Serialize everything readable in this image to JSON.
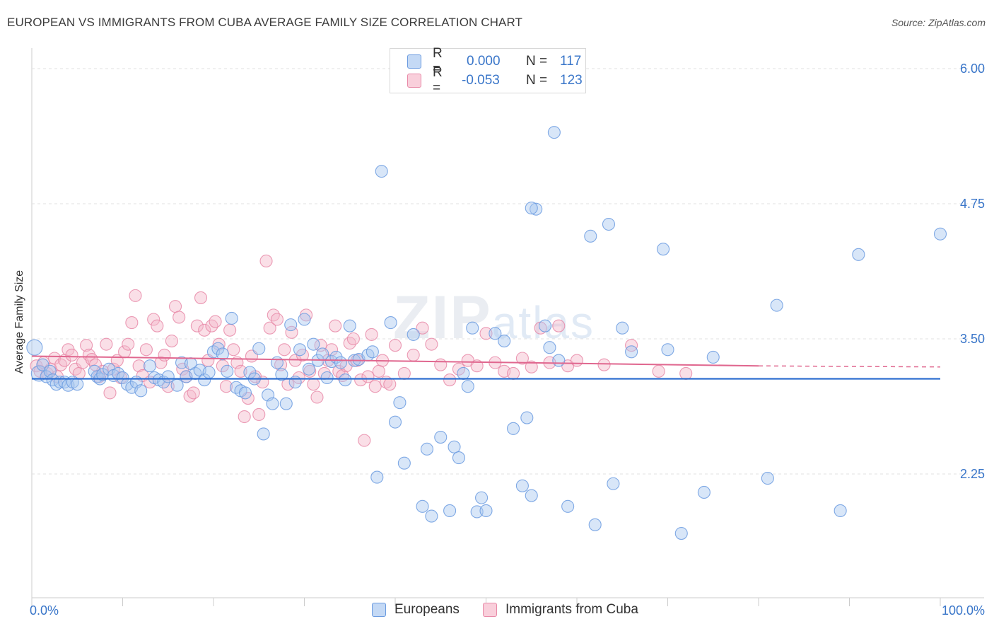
{
  "title": "EUROPEAN VS IMMIGRANTS FROM CUBA AVERAGE FAMILY SIZE CORRELATION CHART",
  "source": "Source: ZipAtlas.com",
  "watermark": {
    "zip": "ZIP",
    "atlas": "atlas"
  },
  "legend": [
    {
      "r_label": "R =",
      "r_value": "0.000",
      "n_label": "N =",
      "n_value": "117",
      "color": "#a9c8f0"
    },
    {
      "r_label": "R =",
      "r_value": "-0.053",
      "n_label": "N =",
      "n_value": "123",
      "color": "#f5b8ca"
    }
  ],
  "chart_data": {
    "type": "scatter",
    "title": "EUROPEAN VS IMMIGRANTS FROM CUBA AVERAGE FAMILY SIZE CORRELATION CHART",
    "ylabel": "Average Family Size",
    "xlabel": "",
    "x_tick_labels": [
      "0.0%",
      "100.0%"
    ],
    "y_ticks": [
      2.25,
      3.5,
      4.75,
      6.0
    ],
    "y_tick_labels": [
      "2.25",
      "3.50",
      "4.75",
      "6.00"
    ],
    "xlim": [
      0,
      100
    ],
    "ylim": [
      1.0,
      6.1
    ],
    "grid": "horizontal dashed",
    "legend_position": "top-center",
    "series": [
      {
        "name": "Europeans",
        "color": "#6b9be0",
        "fill": "#a9c8f0",
        "trend": {
          "x0": 0,
          "y0": 3.13,
          "x1": 100,
          "y1": 3.13
        },
        "points": [
          [
            0.3,
            3.42
          ],
          [
            0.8,
            3.18
          ],
          [
            1.2,
            3.26
          ],
          [
            1.6,
            3.15
          ],
          [
            2.0,
            3.2
          ],
          [
            2.3,
            3.12
          ],
          [
            2.7,
            3.08
          ],
          [
            3.1,
            3.1
          ],
          [
            3.6,
            3.1
          ],
          [
            4.0,
            3.07
          ],
          [
            4.5,
            3.1
          ],
          [
            5.0,
            3.08
          ],
          [
            6.9,
            3.2
          ],
          [
            7.2,
            3.15
          ],
          [
            7.5,
            3.13
          ],
          [
            7.8,
            3.17
          ],
          [
            8.5,
            3.22
          ],
          [
            9.0,
            3.16
          ],
          [
            9.5,
            3.18
          ],
          [
            10.0,
            3.14
          ],
          [
            10.5,
            3.08
          ],
          [
            11.0,
            3.05
          ],
          [
            11.5,
            3.1
          ],
          [
            12.0,
            3.02
          ],
          [
            13.0,
            3.25
          ],
          [
            13.5,
            3.14
          ],
          [
            14.0,
            3.12
          ],
          [
            14.5,
            3.1
          ],
          [
            15.0,
            3.15
          ],
          [
            16.0,
            3.07
          ],
          [
            16.5,
            3.28
          ],
          [
            17.0,
            3.15
          ],
          [
            17.5,
            3.27
          ],
          [
            18.0,
            3.18
          ],
          [
            18.5,
            3.21
          ],
          [
            19.0,
            3.12
          ],
          [
            19.5,
            3.19
          ],
          [
            20.0,
            3.38
          ],
          [
            20.5,
            3.41
          ],
          [
            21.0,
            3.36
          ],
          [
            21.5,
            3.2
          ],
          [
            22.0,
            3.69
          ],
          [
            22.5,
            3.05
          ],
          [
            23.0,
            3.02
          ],
          [
            23.5,
            3.0
          ],
          [
            24.0,
            3.19
          ],
          [
            24.5,
            3.13
          ],
          [
            25.0,
            3.41
          ],
          [
            25.5,
            2.62
          ],
          [
            26.0,
            2.98
          ],
          [
            26.5,
            2.9
          ],
          [
            27.0,
            3.28
          ],
          [
            27.5,
            3.17
          ],
          [
            28.0,
            2.9
          ],
          [
            28.5,
            3.63
          ],
          [
            29.0,
            3.1
          ],
          [
            29.5,
            3.4
          ],
          [
            30.0,
            3.68
          ],
          [
            30.5,
            3.22
          ],
          [
            31.0,
            3.45
          ],
          [
            31.5,
            3.3
          ],
          [
            32.0,
            3.36
          ],
          [
            32.5,
            3.14
          ],
          [
            33.0,
            3.29
          ],
          [
            33.5,
            3.33
          ],
          [
            34.0,
            3.28
          ],
          [
            34.5,
            3.12
          ],
          [
            35.0,
            3.62
          ],
          [
            35.5,
            3.3
          ],
          [
            36.0,
            3.31
          ],
          [
            37.0,
            3.35
          ],
          [
            37.5,
            3.38
          ],
          [
            38.0,
            2.22
          ],
          [
            38.5,
            5.05
          ],
          [
            39.5,
            3.65
          ],
          [
            40.0,
            2.73
          ],
          [
            40.5,
            2.91
          ],
          [
            41.0,
            2.35
          ],
          [
            42.0,
            3.54
          ],
          [
            43.0,
            1.95
          ],
          [
            43.5,
            2.48
          ],
          [
            44.0,
            1.86
          ],
          [
            45.0,
            2.59
          ],
          [
            46.0,
            1.91
          ],
          [
            46.5,
            2.5
          ],
          [
            47.0,
            2.4
          ],
          [
            47.5,
            3.18
          ],
          [
            48.0,
            3.06
          ],
          [
            48.5,
            3.6
          ],
          [
            49.0,
            1.9
          ],
          [
            49.5,
            2.03
          ],
          [
            50.0,
            1.91
          ],
          [
            51.0,
            3.55
          ],
          [
            52.0,
            3.48
          ],
          [
            53.0,
            2.67
          ],
          [
            54.0,
            2.14
          ],
          [
            54.5,
            2.77
          ],
          [
            55.0,
            2.05
          ],
          [
            55.5,
            4.7
          ],
          [
            56.5,
            3.62
          ],
          [
            57.0,
            3.42
          ],
          [
            58.0,
            3.3
          ],
          [
            59.0,
            1.95
          ],
          [
            61.5,
            4.45
          ],
          [
            62.0,
            1.78
          ],
          [
            63.5,
            4.56
          ],
          [
            64.0,
            2.16
          ],
          [
            65.0,
            3.6
          ],
          [
            66.0,
            3.38
          ],
          [
            69.5,
            4.33
          ],
          [
            70.0,
            3.4
          ],
          [
            71.5,
            1.7
          ],
          [
            74.0,
            2.08
          ],
          [
            75.0,
            3.33
          ],
          [
            81.0,
            2.21
          ],
          [
            82.0,
            3.81
          ],
          [
            89.0,
            1.91
          ],
          [
            91.0,
            4.28
          ],
          [
            100.0,
            4.47
          ],
          [
            57.5,
            5.41
          ],
          [
            55.0,
            4.71
          ]
        ]
      },
      {
        "name": "Immigrants from Cuba",
        "color": "#e88aa8",
        "fill": "#f5b8ca",
        "trend": {
          "x0": 0,
          "y0": 3.34,
          "x1": 80,
          "y1": 3.25,
          "dash_x1": 100,
          "dash_y1": 3.24
        },
        "points": [
          [
            0.5,
            3.25
          ],
          [
            0.9,
            3.2
          ],
          [
            1.3,
            3.28
          ],
          [
            1.7,
            3.18
          ],
          [
            2.1,
            3.22
          ],
          [
            2.5,
            3.32
          ],
          [
            2.8,
            3.15
          ],
          [
            3.2,
            3.26
          ],
          [
            3.6,
            3.3
          ],
          [
            4.0,
            3.4
          ],
          [
            4.4,
            3.35
          ],
          [
            4.8,
            3.22
          ],
          [
            5.2,
            3.18
          ],
          [
            5.6,
            3.28
          ],
          [
            6.0,
            3.44
          ],
          [
            6.3,
            3.35
          ],
          [
            6.6,
            3.31
          ],
          [
            7.0,
            3.26
          ],
          [
            7.4,
            3.15
          ],
          [
            7.8,
            3.2
          ],
          [
            8.2,
            3.45
          ],
          [
            8.6,
            3.0
          ],
          [
            9.0,
            3.22
          ],
          [
            9.4,
            3.3
          ],
          [
            9.8,
            3.14
          ],
          [
            10.2,
            3.38
          ],
          [
            10.6,
            3.45
          ],
          [
            11.0,
            3.65
          ],
          [
            11.4,
            3.9
          ],
          [
            11.8,
            3.25
          ],
          [
            12.2,
            3.16
          ],
          [
            12.6,
            3.4
          ],
          [
            13.0,
            3.1
          ],
          [
            13.4,
            3.68
          ],
          [
            13.8,
            3.62
          ],
          [
            14.2,
            3.28
          ],
          [
            14.6,
            3.35
          ],
          [
            15.0,
            3.06
          ],
          [
            15.4,
            3.48
          ],
          [
            15.8,
            3.8
          ],
          [
            16.2,
            3.7
          ],
          [
            16.6,
            3.22
          ],
          [
            17.0,
            3.15
          ],
          [
            17.4,
            2.97
          ],
          [
            17.8,
            3.0
          ],
          [
            18.2,
            3.62
          ],
          [
            18.6,
            3.88
          ],
          [
            19.0,
            3.58
          ],
          [
            19.4,
            3.3
          ],
          [
            19.8,
            3.62
          ],
          [
            20.2,
            3.66
          ],
          [
            20.6,
            3.45
          ],
          [
            21.0,
            3.25
          ],
          [
            21.4,
            3.06
          ],
          [
            21.8,
            3.58
          ],
          [
            22.2,
            3.4
          ],
          [
            22.6,
            3.28
          ],
          [
            23.0,
            3.2
          ],
          [
            23.4,
            2.78
          ],
          [
            23.8,
            2.95
          ],
          [
            24.2,
            3.34
          ],
          [
            24.6,
            3.15
          ],
          [
            25.0,
            2.8
          ],
          [
            25.4,
            3.1
          ],
          [
            25.8,
            4.22
          ],
          [
            26.2,
            3.6
          ],
          [
            26.6,
            3.72
          ],
          [
            27.0,
            3.68
          ],
          [
            27.4,
            3.26
          ],
          [
            27.8,
            3.4
          ],
          [
            28.2,
            3.08
          ],
          [
            28.6,
            3.56
          ],
          [
            29.0,
            3.3
          ],
          [
            29.4,
            3.14
          ],
          [
            29.8,
            3.35
          ],
          [
            30.2,
            3.72
          ],
          [
            30.6,
            3.2
          ],
          [
            31.0,
            3.08
          ],
          [
            31.4,
            2.96
          ],
          [
            31.8,
            3.44
          ],
          [
            32.2,
            3.18
          ],
          [
            32.6,
            3.3
          ],
          [
            33.0,
            3.4
          ],
          [
            33.4,
            3.62
          ],
          [
            33.8,
            3.2
          ],
          [
            34.2,
            3.16
          ],
          [
            34.6,
            3.25
          ],
          [
            35.0,
            3.46
          ],
          [
            35.4,
            3.5
          ],
          [
            35.8,
            3.3
          ],
          [
            36.2,
            3.12
          ],
          [
            36.6,
            2.56
          ],
          [
            37.0,
            3.15
          ],
          [
            37.4,
            3.54
          ],
          [
            37.8,
            3.06
          ],
          [
            38.2,
            3.2
          ],
          [
            38.6,
            3.3
          ],
          [
            39.0,
            3.1
          ],
          [
            39.4,
            3.08
          ],
          [
            40.0,
            3.44
          ],
          [
            41.0,
            3.18
          ],
          [
            42.0,
            3.35
          ],
          [
            43.0,
            3.6
          ],
          [
            44.0,
            3.45
          ],
          [
            45.0,
            3.26
          ],
          [
            46.0,
            3.12
          ],
          [
            47.0,
            3.22
          ],
          [
            48.0,
            3.3
          ],
          [
            49.0,
            3.25
          ],
          [
            50.0,
            3.55
          ],
          [
            51.0,
            3.28
          ],
          [
            52.0,
            3.2
          ],
          [
            53.0,
            3.18
          ],
          [
            54.0,
            3.32
          ],
          [
            55.0,
            3.24
          ],
          [
            56.0,
            3.6
          ],
          [
            57.0,
            3.28
          ],
          [
            58.0,
            3.62
          ],
          [
            59.0,
            3.25
          ],
          [
            60.0,
            3.3
          ],
          [
            63.0,
            3.26
          ],
          [
            66.0,
            3.44
          ],
          [
            69.0,
            3.2
          ],
          [
            72.0,
            3.18
          ]
        ]
      }
    ]
  }
}
